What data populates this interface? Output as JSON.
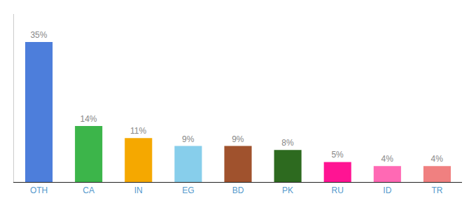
{
  "chart_data": {
    "type": "bar",
    "categories": [
      "OTH",
      "CA",
      "IN",
      "EG",
      "BD",
      "PK",
      "RU",
      "ID",
      "TR"
    ],
    "values": [
      35,
      14,
      11,
      9,
      9,
      8,
      5,
      4,
      4
    ],
    "value_labels": [
      "35%",
      "14%",
      "11%",
      "9%",
      "9%",
      "8%",
      "5%",
      "4%",
      "4%"
    ],
    "colors": [
      "#4d7edb",
      "#3cb54a",
      "#f5a800",
      "#87ceeb",
      "#a0522d",
      "#2d6a1f",
      "#ff1493",
      "#ff69b4",
      "#f08080"
    ],
    "ylim": [
      0,
      42
    ],
    "data_labels": true,
    "tick_labels": "x",
    "grid": false
  }
}
